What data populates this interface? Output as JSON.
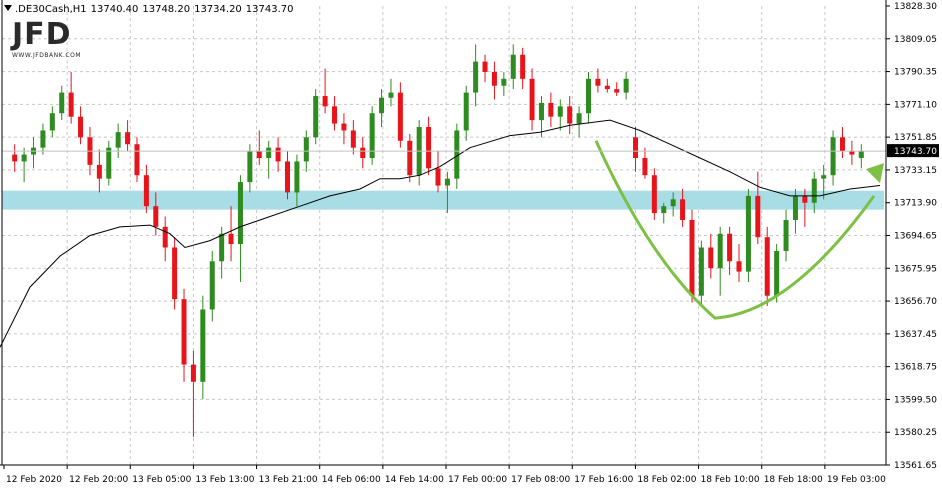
{
  "header": {
    "symbol": ".DE30Cash,H1",
    "open": "13740.40",
    "high": "13748.20",
    "low": "13734.20",
    "close": "13743.70"
  },
  "logo": {
    "text": "JFD",
    "subtext": "WWW.JFDBANK.COM"
  },
  "colors": {
    "bull": "#2e8b1f",
    "bear": "#e8141b",
    "ma": "#000000",
    "zone": "#a8dde6",
    "arrow": "#7dc044",
    "grid": "#c8c8c8"
  },
  "chart_data": {
    "type": "candlestick",
    "symbol": ".DE30Cash",
    "timeframe": "H1",
    "current_price_label": "13743.70",
    "ylim": [
      13561.65,
      13828.3
    ],
    "y_ticks": [
      "13828.30",
      "13809.05",
      "13790.35",
      "13771.10",
      "13751.85",
      "13733.15",
      "13713.90",
      "13694.65",
      "13675.95",
      "13656.70",
      "13637.45",
      "13618.75",
      "13599.50",
      "13580.25",
      "13561.65"
    ],
    "x_ticks": [
      "12 Feb 2020",
      "12 Feb 20:00",
      "13 Feb 05:00",
      "13 Feb 13:00",
      "13 Feb 21:00",
      "14 Feb 06:00",
      "14 Feb 14:00",
      "17 Feb 00:00",
      "17 Feb 08:00",
      "17 Feb 16:00",
      "18 Feb 02:00",
      "18 Feb 10:00",
      "18 Feb 18:00",
      "19 Feb 03:00"
    ],
    "support_zone": [
      13710,
      13721
    ],
    "candles": [
      [
        13742,
        13748,
        13732,
        13738
      ],
      [
        13738,
        13746,
        13726,
        13742
      ],
      [
        13742,
        13752,
        13734,
        13746
      ],
      [
        13746,
        13760,
        13742,
        13756
      ],
      [
        13756,
        13770,
        13752,
        13766
      ],
      [
        13766,
        13782,
        13762,
        13778
      ],
      [
        13778,
        13790,
        13760,
        13764
      ],
      [
        13764,
        13770,
        13748,
        13752
      ],
      [
        13752,
        13758,
        13730,
        13736
      ],
      [
        13736,
        13745,
        13720,
        13728
      ],
      [
        13728,
        13750,
        13724,
        13746
      ],
      [
        13746,
        13760,
        13740,
        13755
      ],
      [
        13755,
        13762,
        13744,
        13748
      ],
      [
        13748,
        13752,
        13726,
        13730
      ],
      [
        13730,
        13736,
        13708,
        13712
      ],
      [
        13712,
        13720,
        13695,
        13700
      ],
      [
        13700,
        13706,
        13680,
        13688
      ],
      [
        13688,
        13694,
        13652,
        13658
      ],
      [
        13658,
        13664,
        13610,
        13620
      ],
      [
        13620,
        13628,
        13578,
        13610
      ],
      [
        13610,
        13660,
        13600,
        13652
      ],
      [
        13652,
        13686,
        13645,
        13680
      ],
      [
        13680,
        13700,
        13670,
        13696
      ],
      [
        13696,
        13712,
        13680,
        13690
      ],
      [
        13690,
        13730,
        13668,
        13726
      ],
      [
        13726,
        13748,
        13720,
        13744
      ],
      [
        13744,
        13756,
        13736,
        13740
      ],
      [
        13740,
        13750,
        13728,
        13746
      ],
      [
        13746,
        13752,
        13732,
        13738
      ],
      [
        13738,
        13744,
        13716,
        13720
      ],
      [
        13720,
        13742,
        13712,
        13738
      ],
      [
        13738,
        13756,
        13732,
        13752
      ],
      [
        13752,
        13780,
        13748,
        13776
      ],
      [
        13776,
        13792,
        13766,
        13770
      ],
      [
        13770,
        13776,
        13756,
        13760
      ],
      [
        13760,
        13766,
        13748,
        13756
      ],
      [
        13756,
        13762,
        13742,
        13746
      ],
      [
        13746,
        13752,
        13734,
        13740
      ],
      [
        13740,
        13770,
        13736,
        13766
      ],
      [
        13766,
        13780,
        13758,
        13775
      ],
      [
        13775,
        13786,
        13770,
        13778
      ],
      [
        13778,
        13784,
        13746,
        13750
      ],
      [
        13750,
        13754,
        13726,
        13730
      ],
      [
        13730,
        13762,
        13724,
        13758
      ],
      [
        13758,
        13764,
        13730,
        13734
      ],
      [
        13734,
        13744,
        13720,
        13724
      ],
      [
        13724,
        13732,
        13708,
        13728
      ],
      [
        13728,
        13760,
        13722,
        13756
      ],
      [
        13756,
        13782,
        13750,
        13778
      ],
      [
        13778,
        13806,
        13770,
        13796
      ],
      [
        13796,
        13800,
        13784,
        13790
      ],
      [
        13790,
        13796,
        13774,
        13782
      ],
      [
        13782,
        13790,
        13776,
        13786
      ],
      [
        13786,
        13806,
        13780,
        13800
      ],
      [
        13800,
        13804,
        13780,
        13786
      ],
      [
        13786,
        13792,
        13756,
        13762
      ],
      [
        13762,
        13776,
        13752,
        13772
      ],
      [
        13772,
        13778,
        13758,
        13764
      ],
      [
        13764,
        13774,
        13756,
        13770
      ],
      [
        13770,
        13776,
        13754,
        13760
      ],
      [
        13760,
        13770,
        13752,
        13766
      ],
      [
        13766,
        13790,
        13760,
        13786
      ],
      [
        13786,
        13792,
        13778,
        13782
      ],
      [
        13782,
        13786,
        13778,
        13780
      ],
      [
        13780,
        13784,
        13776,
        13778
      ],
      [
        13778,
        13790,
        13774,
        13786
      ],
      [
        13752,
        13758,
        13732,
        13740
      ],
      [
        13740,
        13746,
        13728,
        13730
      ],
      [
        13730,
        13734,
        13704,
        13708
      ],
      [
        13708,
        13714,
        13702,
        13712
      ],
      [
        13712,
        13720,
        13706,
        13716
      ],
      [
        13716,
        13722,
        13700,
        13704
      ],
      [
        13704,
        13710,
        13656,
        13660
      ],
      [
        13660,
        13692,
        13654,
        13688
      ],
      [
        13688,
        13696,
        13670,
        13676
      ],
      [
        13676,
        13700,
        13660,
        13696
      ],
      [
        13696,
        13700,
        13672,
        13680
      ],
      [
        13680,
        13690,
        13668,
        13674
      ],
      [
        13674,
        13722,
        13668,
        13718
      ],
      [
        13718,
        13732,
        13690,
        13694
      ],
      [
        13694,
        13700,
        13654,
        13660
      ],
      [
        13660,
        13690,
        13656,
        13686
      ],
      [
        13686,
        13710,
        13680,
        13704
      ],
      [
        13704,
        13722,
        13696,
        13718
      ],
      [
        13718,
        13722,
        13700,
        13714
      ],
      [
        13714,
        13732,
        13708,
        13728
      ],
      [
        13728,
        13736,
        13716,
        13730
      ],
      [
        13730,
        13756,
        13724,
        13752
      ],
      [
        13752,
        13758,
        13740,
        13744
      ],
      [
        13744,
        13750,
        13736,
        13742
      ],
      [
        13740,
        13748,
        13734,
        13744
      ]
    ],
    "moving_average": [
      [
        0,
        13630
      ],
      [
        30,
        13665
      ],
      [
        60,
        13683
      ],
      [
        90,
        13695
      ],
      [
        120,
        13700
      ],
      [
        150,
        13701
      ],
      [
        170,
        13696
      ],
      [
        185,
        13688
      ],
      [
        210,
        13692
      ],
      [
        240,
        13700
      ],
      [
        270,
        13706
      ],
      [
        300,
        13712
      ],
      [
        330,
        13718
      ],
      [
        360,
        13722
      ],
      [
        380,
        13728
      ],
      [
        400,
        13728
      ],
      [
        420,
        13730
      ],
      [
        440,
        13735
      ],
      [
        470,
        13746
      ],
      [
        510,
        13753
      ],
      [
        540,
        13755
      ],
      [
        570,
        13759
      ],
      [
        610,
        13762
      ],
      [
        640,
        13756
      ],
      [
        670,
        13748
      ],
      [
        700,
        13740
      ],
      [
        730,
        13732
      ],
      [
        760,
        13723
      ],
      [
        790,
        13718
      ],
      [
        820,
        13718
      ],
      [
        850,
        13722
      ],
      [
        880,
        13724
      ]
    ]
  }
}
